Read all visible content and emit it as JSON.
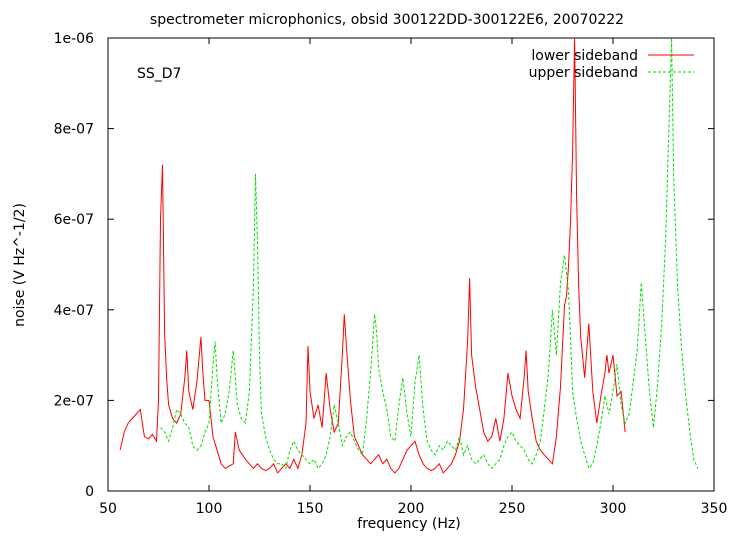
{
  "chart_data": {
    "type": "line",
    "title": "spectrometer microphonics, obsid 300122DD-300122E6, 20070222",
    "xlabel": "frequency (Hz)",
    "ylabel": "noise (V Hz^-1/2)",
    "annotation": "SS_D7",
    "xlim": [
      50,
      350
    ],
    "ylim": [
      0,
      1e-06
    ],
    "x_ticks": [
      50,
      100,
      150,
      200,
      250,
      300,
      350
    ],
    "x_tick_labels": [
      "50",
      "100",
      "150",
      "200",
      "250",
      "300",
      "350"
    ],
    "y_ticks": [
      0,
      2e-07,
      4e-07,
      6e-07,
      8e-07,
      1e-06
    ],
    "y_tick_labels": [
      "0",
      "2e-07",
      "4e-07",
      "6e-07",
      "8e-07",
      "1e-06"
    ],
    "grid": false,
    "legend_position": "top-right",
    "series": [
      {
        "name": "lower sideband",
        "color": "#ff0000",
        "style": "solid",
        "x": [
          56,
          58,
          60,
          62,
          64,
          66,
          68,
          70,
          72,
          74,
          75,
          76,
          77,
          78,
          79,
          80,
          82,
          84,
          86,
          88,
          89,
          90,
          92,
          94,
          96,
          97,
          98,
          100,
          102,
          104,
          106,
          108,
          110,
          112,
          113,
          115,
          118,
          120,
          122,
          124,
          126,
          128,
          130,
          132,
          134,
          136,
          138,
          140,
          142,
          144,
          146,
          148,
          149,
          150,
          152,
          154,
          156,
          158,
          160,
          162,
          164,
          166,
          167,
          168,
          170,
          172,
          174,
          176,
          178,
          180,
          182,
          184,
          186,
          188,
          190,
          192,
          194,
          196,
          198,
          200,
          202,
          204,
          206,
          208,
          210,
          212,
          214,
          216,
          218,
          220,
          222,
          224,
          226,
          228,
          229,
          230,
          232,
          234,
          236,
          238,
          240,
          242,
          244,
          246,
          248,
          250,
          252,
          254,
          256,
          257,
          258,
          260,
          262,
          264,
          266,
          268,
          270,
          272,
          274,
          276,
          277,
          278,
          279,
          280,
          281,
          282,
          283,
          284,
          286,
          288,
          290,
          292,
          294,
          296,
          297,
          298,
          300,
          302,
          304,
          306
        ],
        "y": [
          9e-08,
          1.3e-07,
          1.5e-07,
          1.6e-07,
          1.7e-07,
          1.8e-07,
          1.2e-07,
          1.15e-07,
          1.25e-07,
          1.1e-07,
          2e-07,
          6e-07,
          7.2e-07,
          3.5e-07,
          2.5e-07,
          1.9e-07,
          1.6e-07,
          1.5e-07,
          1.7e-07,
          2.5e-07,
          3.1e-07,
          2.2e-07,
          1.8e-07,
          2.4e-07,
          3.4e-07,
          2.6e-07,
          2e-07,
          2e-07,
          1.2e-07,
          9e-08,
          6e-08,
          5e-08,
          5.5e-08,
          6e-08,
          1.3e-07,
          9e-08,
          7e-08,
          6e-08,
          5e-08,
          6e-08,
          5e-08,
          4.5e-08,
          5e-08,
          6e-08,
          4e-08,
          5e-08,
          6e-08,
          5e-08,
          7e-08,
          5e-08,
          8e-08,
          1.5e-07,
          3.2e-07,
          2.2e-07,
          1.6e-07,
          1.9e-07,
          1.4e-07,
          2.6e-07,
          1.8e-07,
          1.3e-07,
          1.5e-07,
          3e-07,
          3.9e-07,
          3.2e-07,
          2e-07,
          1.2e-07,
          1e-07,
          8e-08,
          7e-08,
          6e-08,
          7e-08,
          8e-08,
          6e-08,
          7e-08,
          5e-08,
          4e-08,
          5e-08,
          7e-08,
          9e-08,
          1e-07,
          1.1e-07,
          8e-08,
          6e-08,
          5e-08,
          4.5e-08,
          5e-08,
          6e-08,
          4e-08,
          5e-08,
          6e-08,
          8e-08,
          1.1e-07,
          1.8e-07,
          3.3e-07,
          4.7e-07,
          3e-07,
          2.3e-07,
          1.8e-07,
          1.3e-07,
          1.1e-07,
          1.2e-07,
          1.6e-07,
          1.1e-07,
          1.6e-07,
          2.6e-07,
          2.1e-07,
          1.8e-07,
          1.6e-07,
          2.5e-07,
          3.1e-07,
          2.2e-07,
          1.6e-07,
          1.1e-07,
          9e-08,
          8e-08,
          7e-08,
          6e-08,
          1.2e-07,
          2.3e-07,
          4.1e-07,
          4.3e-07,
          5e-07,
          6e-07,
          7.5e-07,
          1e-06,
          6.5e-07,
          4.5e-07,
          3.4e-07,
          2.5e-07,
          3.7e-07,
          2.2e-07,
          1.5e-07,
          2.1e-07,
          2.6e-07,
          3e-07,
          2.6e-07,
          3e-07,
          2.1e-07,
          2.2e-07,
          1.3e-07
        ]
      },
      {
        "name": "upper sideband",
        "color": "#00dd00",
        "style": "dashed",
        "x": [
          76,
          78,
          80,
          82,
          84,
          86,
          88,
          90,
          92,
          94,
          96,
          98,
          100,
          102,
          103,
          104,
          106,
          108,
          110,
          112,
          113,
          114,
          116,
          118,
          120,
          122,
          123,
          124,
          125,
          126,
          128,
          130,
          132,
          134,
          136,
          138,
          140,
          142,
          144,
          146,
          148,
          150,
          152,
          154,
          156,
          158,
          160,
          162,
          164,
          166,
          168,
          170,
          172,
          174,
          176,
          178,
          180,
          182,
          183,
          184,
          186,
          188,
          190,
          192,
          194,
          196,
          198,
          200,
          202,
          204,
          206,
          208,
          210,
          212,
          214,
          216,
          218,
          220,
          222,
          224,
          226,
          228,
          230,
          232,
          234,
          236,
          238,
          240,
          242,
          244,
          246,
          248,
          250,
          252,
          254,
          256,
          258,
          260,
          262,
          264,
          266,
          268,
          270,
          272,
          274,
          276,
          278,
          280,
          282,
          284,
          286,
          288,
          290,
          292,
          294,
          296,
          298,
          300,
          302,
          304,
          306,
          308,
          310,
          312,
          314,
          316,
          318,
          320,
          322,
          324,
          326,
          328,
          329,
          330,
          332,
          334,
          336,
          338,
          340,
          342
        ],
        "y": [
          1.4e-07,
          1.3e-07,
          1.1e-07,
          1.4e-07,
          1.8e-07,
          1.7e-07,
          1.5e-07,
          1.4e-07,
          1e-07,
          9e-08,
          1e-07,
          1.3e-07,
          1.5e-07,
          2.8e-07,
          3.3e-07,
          2.5e-07,
          1.5e-07,
          1.7e-07,
          2.2e-07,
          3.1e-07,
          2.5e-07,
          1.9e-07,
          1.6e-07,
          1.5e-07,
          2.2e-07,
          4.5e-07,
          7e-07,
          5.5e-07,
          3e-07,
          1.7e-07,
          1.2e-07,
          9e-08,
          7e-08,
          6e-08,
          6e-08,
          5e-08,
          9e-08,
          1.1e-07,
          9e-08,
          8e-08,
          7e-08,
          6e-08,
          7e-08,
          5e-08,
          6e-08,
          8e-08,
          1.2e-07,
          1.9e-07,
          1.5e-07,
          1e-07,
          1.2e-07,
          1.3e-07,
          1.1e-07,
          9e-08,
          8e-08,
          1.6e-07,
          2.6e-07,
          3.9e-07,
          3.5e-07,
          2.7e-07,
          2.2e-07,
          1.8e-07,
          1.2e-07,
          1.1e-07,
          1.9e-07,
          2.5e-07,
          1.7e-07,
          1.2e-07,
          2.4e-07,
          3e-07,
          1.8e-07,
          1.1e-07,
          9e-08,
          8e-08,
          1e-07,
          9e-08,
          1.1e-07,
          1e-07,
          9e-08,
          1.2e-07,
          8e-08,
          1e-07,
          7e-08,
          6e-08,
          7e-08,
          8e-08,
          6e-08,
          5e-08,
          6e-08,
          7e-08,
          1e-07,
          1.2e-07,
          1.3e-07,
          1.1e-07,
          1e-07,
          9e-08,
          7e-08,
          6e-08,
          8e-08,
          1.1e-07,
          1.8e-07,
          2.6e-07,
          4e-07,
          3e-07,
          4.6e-07,
          5.2e-07,
          4.4e-07,
          2.2e-07,
          1.6e-07,
          1.1e-07,
          8e-08,
          5e-08,
          6e-08,
          1e-07,
          1.5e-07,
          2.1e-07,
          1.7e-07,
          2.2e-07,
          2.8e-07,
          1.9e-07,
          1.5e-07,
          1.7e-07,
          2.4e-07,
          3.1e-07,
          4.6e-07,
          3.4e-07,
          2.2e-07,
          1.4e-07,
          2.3e-07,
          3.6e-07,
          5.5e-07,
          8.5e-07,
          1e-06,
          7e-07,
          4.5e-07,
          3.1e-07,
          2.1e-07,
          1.3e-07,
          7e-08,
          5e-08
        ]
      }
    ]
  }
}
